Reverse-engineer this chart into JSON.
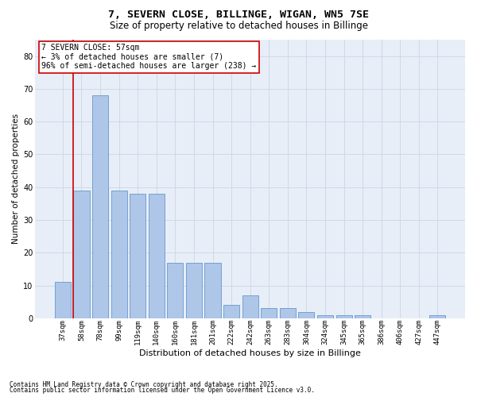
{
  "title1": "7, SEVERN CLOSE, BILLINGE, WIGAN, WN5 7SE",
  "title2": "Size of property relative to detached houses in Billinge",
  "xlabel": "Distribution of detached houses by size in Billinge",
  "ylabel": "Number of detached properties",
  "categories": [
    "37sqm",
    "58sqm",
    "78sqm",
    "99sqm",
    "119sqm",
    "140sqm",
    "160sqm",
    "181sqm",
    "201sqm",
    "222sqm",
    "242sqm",
    "263sqm",
    "283sqm",
    "304sqm",
    "324sqm",
    "345sqm",
    "365sqm",
    "386sqm",
    "406sqm",
    "427sqm",
    "447sqm"
  ],
  "values": [
    11,
    39,
    68,
    39,
    38,
    38,
    17,
    17,
    17,
    4,
    7,
    3,
    3,
    2,
    1,
    1,
    1,
    0,
    0,
    0,
    1
  ],
  "bar_color": "#aec6e8",
  "bar_edge_color": "#6699cc",
  "vline_color": "#cc0000",
  "vline_x_index": 1,
  "annotation_text": "7 SEVERN CLOSE: 57sqm\n← 3% of detached houses are smaller (7)\n96% of semi-detached houses are larger (238) →",
  "annotation_box_color": "#cc0000",
  "ylim": [
    0,
    85
  ],
  "yticks": [
    0,
    10,
    20,
    30,
    40,
    50,
    60,
    70,
    80
  ],
  "grid_color": "#d0d8e8",
  "bg_color": "#e8eef8",
  "footer1": "Contains HM Land Registry data © Crown copyright and database right 2025.",
  "footer2": "Contains public sector information licensed under the Open Government Licence v3.0.",
  "title1_fontsize": 9.5,
  "title2_fontsize": 8.5,
  "xlabel_fontsize": 8,
  "ylabel_fontsize": 7.5,
  "tick_fontsize": 6.5,
  "annot_fontsize": 7,
  "footer_fontsize": 5.5
}
